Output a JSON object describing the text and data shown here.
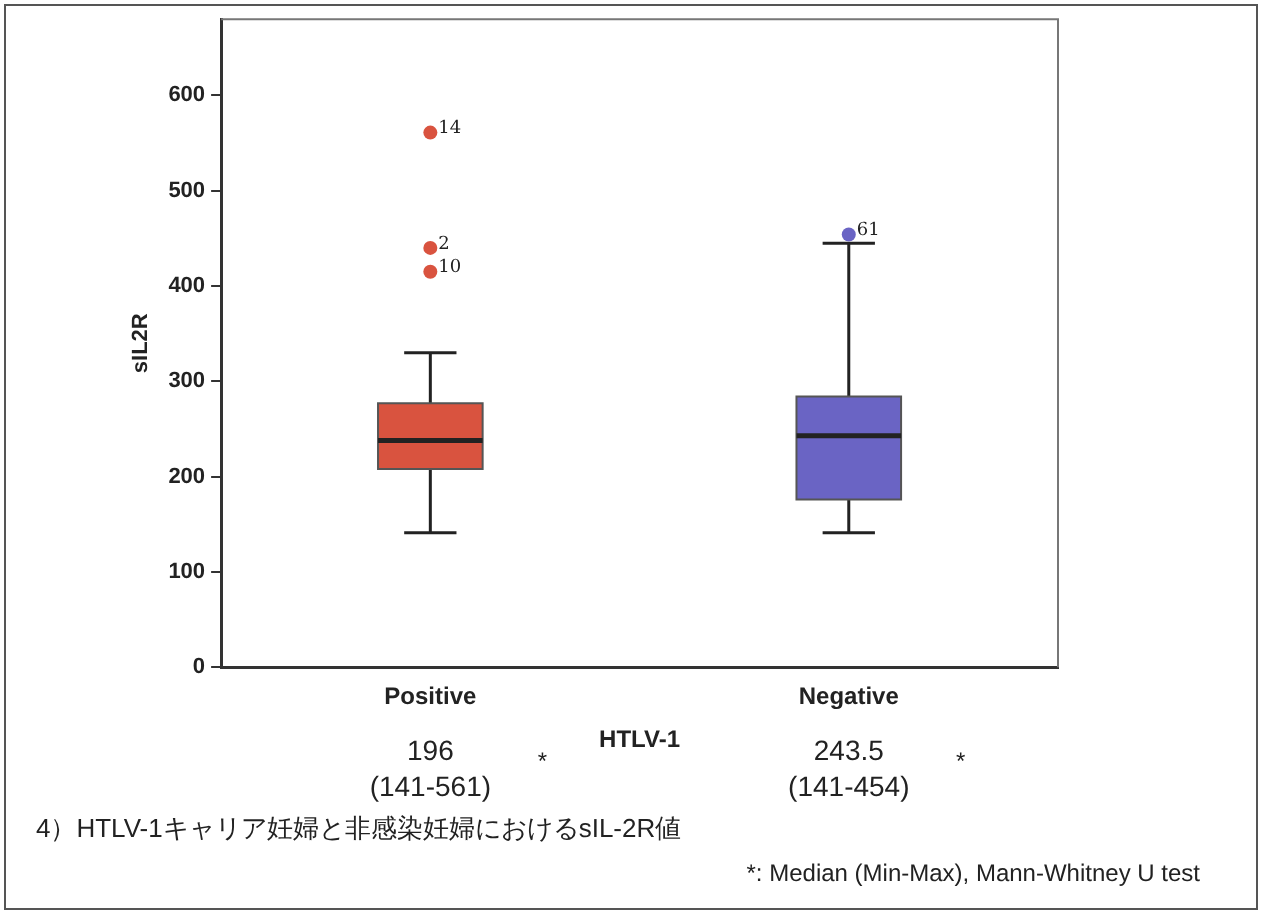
{
  "chart_data": {
    "type": "box",
    "xlabel": "HTLV-1",
    "ylabel": "sIL2R",
    "categories": [
      "Positive",
      "Negative"
    ],
    "boxes": [
      {
        "low": 141,
        "q1": 208,
        "median": 238,
        "q3": 277,
        "high": 330,
        "outliers": [
          561,
          440,
          415
        ]
      },
      {
        "low": 141,
        "q1": 176,
        "median": 243,
        "q3": 284,
        "high": 445,
        "outliers": [
          454
        ]
      }
    ],
    "colors": [
      "#d9533f",
      "#6a64c4"
    ],
    "ylim": [
      0,
      680
    ],
    "yticks": [
      0,
      100,
      200,
      300,
      400,
      500,
      600
    ],
    "grid": false,
    "legend": false,
    "marker": "circle",
    "annotations": [
      "196 (141-561) *",
      "243.5 (141-454) *",
      "4）HTLV-1キャリア妊婦と非感染妊婦におけるsIL-2R値",
      "*: Median (Min-Max), Mann-Whitney U test",
      "14",
      "2",
      "10",
      "61"
    ]
  }
}
